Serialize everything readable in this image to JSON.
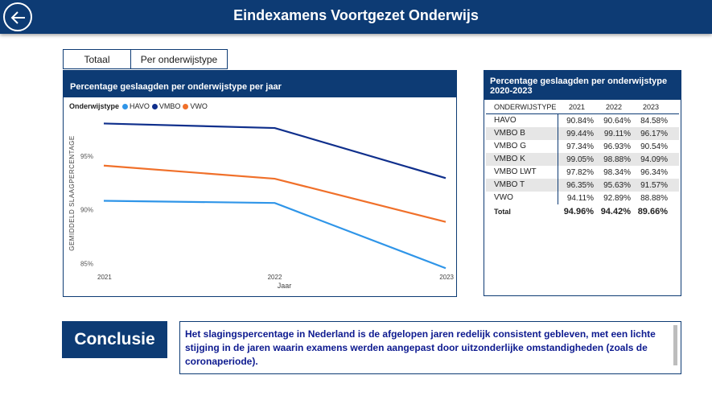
{
  "header": {
    "title": "Eindexamens Voortgezet Onderwijs"
  },
  "tabs": [
    {
      "label": "Totaal"
    },
    {
      "label": "Per onderwijstype"
    }
  ],
  "chart_panel": {
    "title": "Percentage geslaagden per onderwijstype per jaar",
    "legend_title": "Onderwijstype"
  },
  "chart_data": {
    "type": "line",
    "title": "Percentage geslaagden per onderwijstype per jaar",
    "x": [
      "2021",
      "2022",
      "2023"
    ],
    "xlabel": "Jaar",
    "ylabel": "GEMIDDELD SLAAGPERCENTAGE",
    "ylim": [
      84.6,
      98.8
    ],
    "yticks": [
      85,
      90,
      95
    ],
    "ytick_labels": [
      "85%",
      "90%",
      "95%"
    ],
    "grid": false,
    "legend_position": "top-left",
    "series": [
      {
        "name": "HAVO",
        "color": "#2f95e8",
        "values": [
          90.84,
          90.64,
          84.58
        ]
      },
      {
        "name": "VMBO",
        "color": "#0f2f8c",
        "values": [
          98.02,
          97.6,
          92.95
        ]
      },
      {
        "name": "VWO",
        "color": "#f0702a",
        "values": [
          94.11,
          92.89,
          88.88
        ]
      }
    ]
  },
  "table_panel": {
    "title": "Percentage geslaagden per onderwijstype 2020-2023",
    "columns": [
      "ONDERWIJSTYPE",
      "2021",
      "2022",
      "2023"
    ],
    "rows": [
      {
        "name": "HAVO",
        "v2021": "90.84%",
        "v2022": "90.64%",
        "v2023": "84.58%"
      },
      {
        "name": "VMBO B",
        "v2021": "99.44%",
        "v2022": "99.11%",
        "v2023": "96.17%"
      },
      {
        "name": "VMBO G",
        "v2021": "97.34%",
        "v2022": "96.93%",
        "v2023": "90.54%"
      },
      {
        "name": "VMBO K",
        "v2021": "99.05%",
        "v2022": "98.88%",
        "v2023": "94.09%"
      },
      {
        "name": "VMBO LWT",
        "v2021": "97.82%",
        "v2022": "98.34%",
        "v2023": "96.34%"
      },
      {
        "name": "VMBO T",
        "v2021": "96.35%",
        "v2022": "95.63%",
        "v2023": "91.57%"
      },
      {
        "name": "VWO",
        "v2021": "94.11%",
        "v2022": "92.89%",
        "v2023": "88.88%"
      }
    ],
    "total": {
      "name": "Total",
      "v2021": "94.96%",
      "v2022": "94.42%",
      "v2023": "89.66%"
    }
  },
  "conclusion": {
    "label": "Conclusie",
    "text": "Het slagingspercentage in Nederland is de afgelopen jaren redelijk consistent gebleven, met een lichte stijging in de jaren waarin examens werden aangepast door uitzonderlijke omstandigheden (zoals de coronaperiode)."
  },
  "colors": {
    "primary": "#0d3b74",
    "havo": "#2f95e8",
    "vmbo": "#0f2f8c",
    "vwo": "#f0702a"
  }
}
